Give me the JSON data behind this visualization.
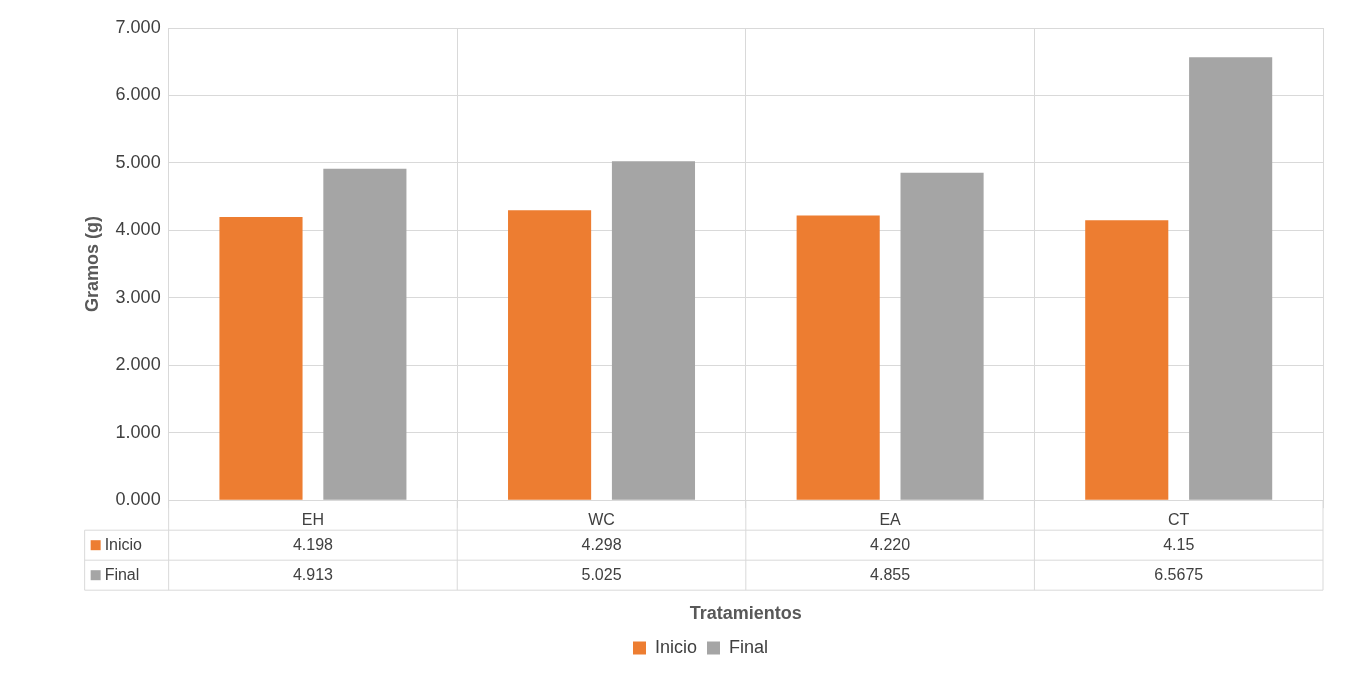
{
  "chart_data": {
    "type": "bar",
    "xlabel": "Tratamientos",
    "ylabel": "Gramos (g)",
    "categories": [
      "EH",
      "WC",
      "EA",
      "CT"
    ],
    "series": [
      {
        "name": "Inicio",
        "color": "#ed7d31",
        "values": [
          4.198,
          4.298,
          4.22,
          4.15
        ],
        "value_labels": [
          "4.198",
          "4.298",
          "4.220",
          "4.15"
        ]
      },
      {
        "name": "Final",
        "color": "#a5a5a5",
        "values": [
          4.913,
          5.025,
          4.855,
          6.5675
        ],
        "value_labels": [
          "4.913",
          "5.025",
          "4.855",
          "6.5675"
        ]
      }
    ],
    "ylim": [
      0,
      7
    ],
    "yticks": [
      {
        "value": 0,
        "label": "0.000"
      },
      {
        "value": 1,
        "label": "1.000"
      },
      {
        "value": 2,
        "label": "2.000"
      },
      {
        "value": 3,
        "label": "3.000"
      },
      {
        "value": 4,
        "label": "4.000"
      },
      {
        "value": 5,
        "label": "5.000"
      },
      {
        "value": 6,
        "label": "6.000"
      },
      {
        "value": 7,
        "label": "7.000"
      }
    ],
    "grid": true,
    "legend": "bottom"
  }
}
